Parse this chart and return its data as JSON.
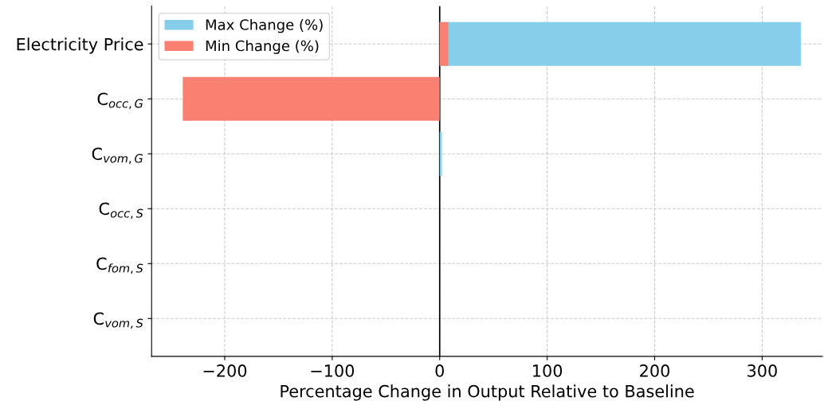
{
  "chart_data": {
    "type": "bar",
    "orientation": "horizontal",
    "categories": [
      "Electricity Price",
      "C$_{occ,G}$",
      "C$_{vom,G}$",
      "C$_{occ,S}$",
      "C$_{fom,S}$",
      "C$_{vom,S}$"
    ],
    "series": [
      {
        "name": "Max Change (%)",
        "color": "#87ceeb",
        "values": [
          336,
          0,
          2,
          0,
          0,
          0
        ]
      },
      {
        "name": "Min Change (%)",
        "color": "#fa8072",
        "values": [
          8,
          -239,
          0,
          0,
          0,
          0
        ]
      }
    ],
    "xlabel": "Percentage Change in Output Relative to Baseline",
    "xlim": [
      -268,
      356
    ],
    "xticks": [
      {
        "value": -200,
        "label": "−200"
      },
      {
        "value": -100,
        "label": "−100"
      },
      0,
      100,
      200,
      300
    ],
    "ref_lines": [
      {
        "axis": "x",
        "value": 0,
        "color": "#000000",
        "line_style": "solid"
      }
    ],
    "grid": true,
    "legend": "top left"
  }
}
